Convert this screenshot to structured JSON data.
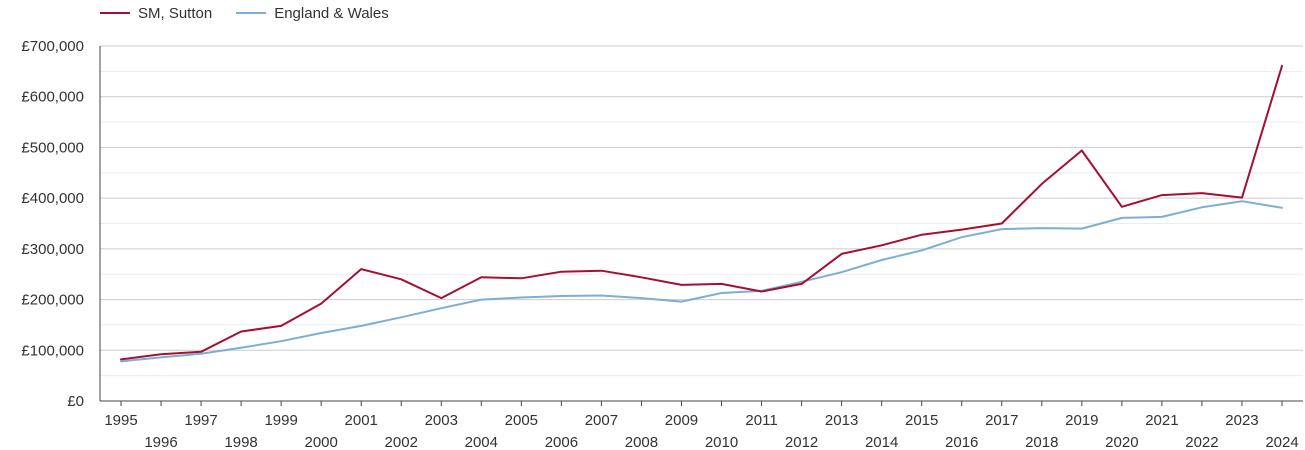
{
  "chart_data": {
    "type": "line",
    "ylim": [
      0,
      700000
    ],
    "y_ticks": [
      {
        "value": 0,
        "label": "£0"
      },
      {
        "value": 100000,
        "label": "£100,000"
      },
      {
        "value": 200000,
        "label": "£200,000"
      },
      {
        "value": 300000,
        "label": "£300,000"
      },
      {
        "value": 400000,
        "label": "£400,000"
      },
      {
        "value": 500000,
        "label": "£500,000"
      },
      {
        "value": 600000,
        "label": "£600,000"
      },
      {
        "value": 700000,
        "label": "£700,000"
      }
    ],
    "x": [
      "1995",
      "1996",
      "1997",
      "1998",
      "1999",
      "2000",
      "2001",
      "2002",
      "2003",
      "2004",
      "2005",
      "2006",
      "2007",
      "2008",
      "2009",
      "2010",
      "2011",
      "2012",
      "2013",
      "2014",
      "2015",
      "2016",
      "2017",
      "2018",
      "2019",
      "2020",
      "2021",
      "2022",
      "2023",
      "2024"
    ],
    "grid": true,
    "legend_position": "top-left",
    "series": [
      {
        "name": "SM, Sutton",
        "color": "#a50f31",
        "values": [
          82000,
          92000,
          97000,
          137000,
          148000,
          192000,
          260000,
          240000,
          203000,
          244000,
          242000,
          255000,
          257000,
          244000,
          229000,
          231000,
          216000,
          231000,
          290000,
          307000,
          328000,
          338000,
          350000,
          428000,
          494000,
          383000,
          406000,
          410000,
          401000,
          661000
        ]
      },
      {
        "name": "England & Wales",
        "color": "#7bafd4",
        "values": [
          78000,
          86000,
          93000,
          105000,
          118000,
          134000,
          148000,
          165000,
          183000,
          200000,
          204000,
          207000,
          208000,
          203000,
          196000,
          213000,
          217000,
          235000,
          254000,
          278000,
          297000,
          323000,
          339000,
          341000,
          340000,
          361000,
          363000,
          382000,
          394000,
          381000
        ]
      }
    ]
  }
}
